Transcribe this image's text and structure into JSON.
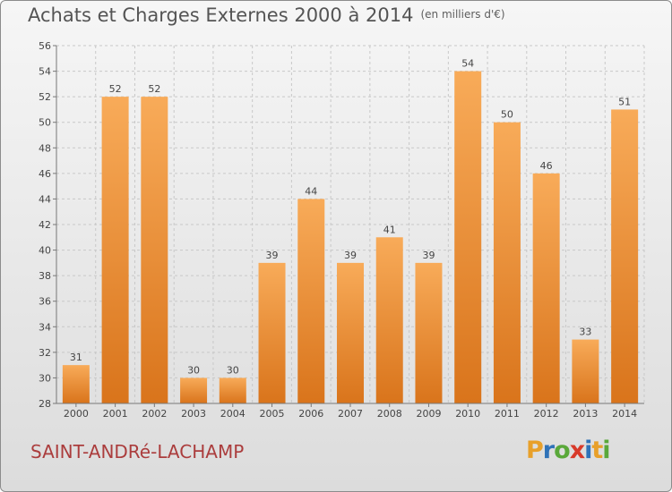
{
  "header": {
    "title": "Achats et Charges Externes 2000 à 2014",
    "unit": "(en milliers d'€)"
  },
  "footer": {
    "commune": "SAINT-ANDRé-LACHAMP",
    "logo": {
      "letters": [
        "P",
        "r",
        "o",
        "x",
        "i",
        "t",
        "i"
      ],
      "colors": [
        "#e8a02a",
        "#2f72b8",
        "#5aa83a",
        "#d83a2a",
        "#2f72b8",
        "#e8a02a",
        "#5aa83a"
      ]
    }
  },
  "colors": {
    "bar_light": "#f8ab59",
    "bar_dark": "#d9741b",
    "grid": "#c8c8c8",
    "axis": "#777777",
    "text": "#444444"
  },
  "chart_data": {
    "type": "bar",
    "title": "Achats et Charges Externes 2000 à 2014",
    "subtitle": "(en milliers d'€)",
    "xlabel": "",
    "ylabel": "",
    "categories": [
      "2000",
      "2001",
      "2002",
      "2003",
      "2004",
      "2005",
      "2006",
      "2007",
      "2008",
      "2009",
      "2010",
      "2011",
      "2012",
      "2013",
      "2014"
    ],
    "values": [
      31,
      52,
      52,
      30,
      30,
      39,
      44,
      39,
      41,
      39,
      54,
      50,
      46,
      33,
      51
    ],
    "ylim": [
      28,
      56
    ],
    "yticks": [
      28,
      30,
      32,
      34,
      36,
      38,
      40,
      42,
      44,
      46,
      48,
      50,
      52,
      54,
      56
    ],
    "grid": true,
    "data_labels": true
  }
}
